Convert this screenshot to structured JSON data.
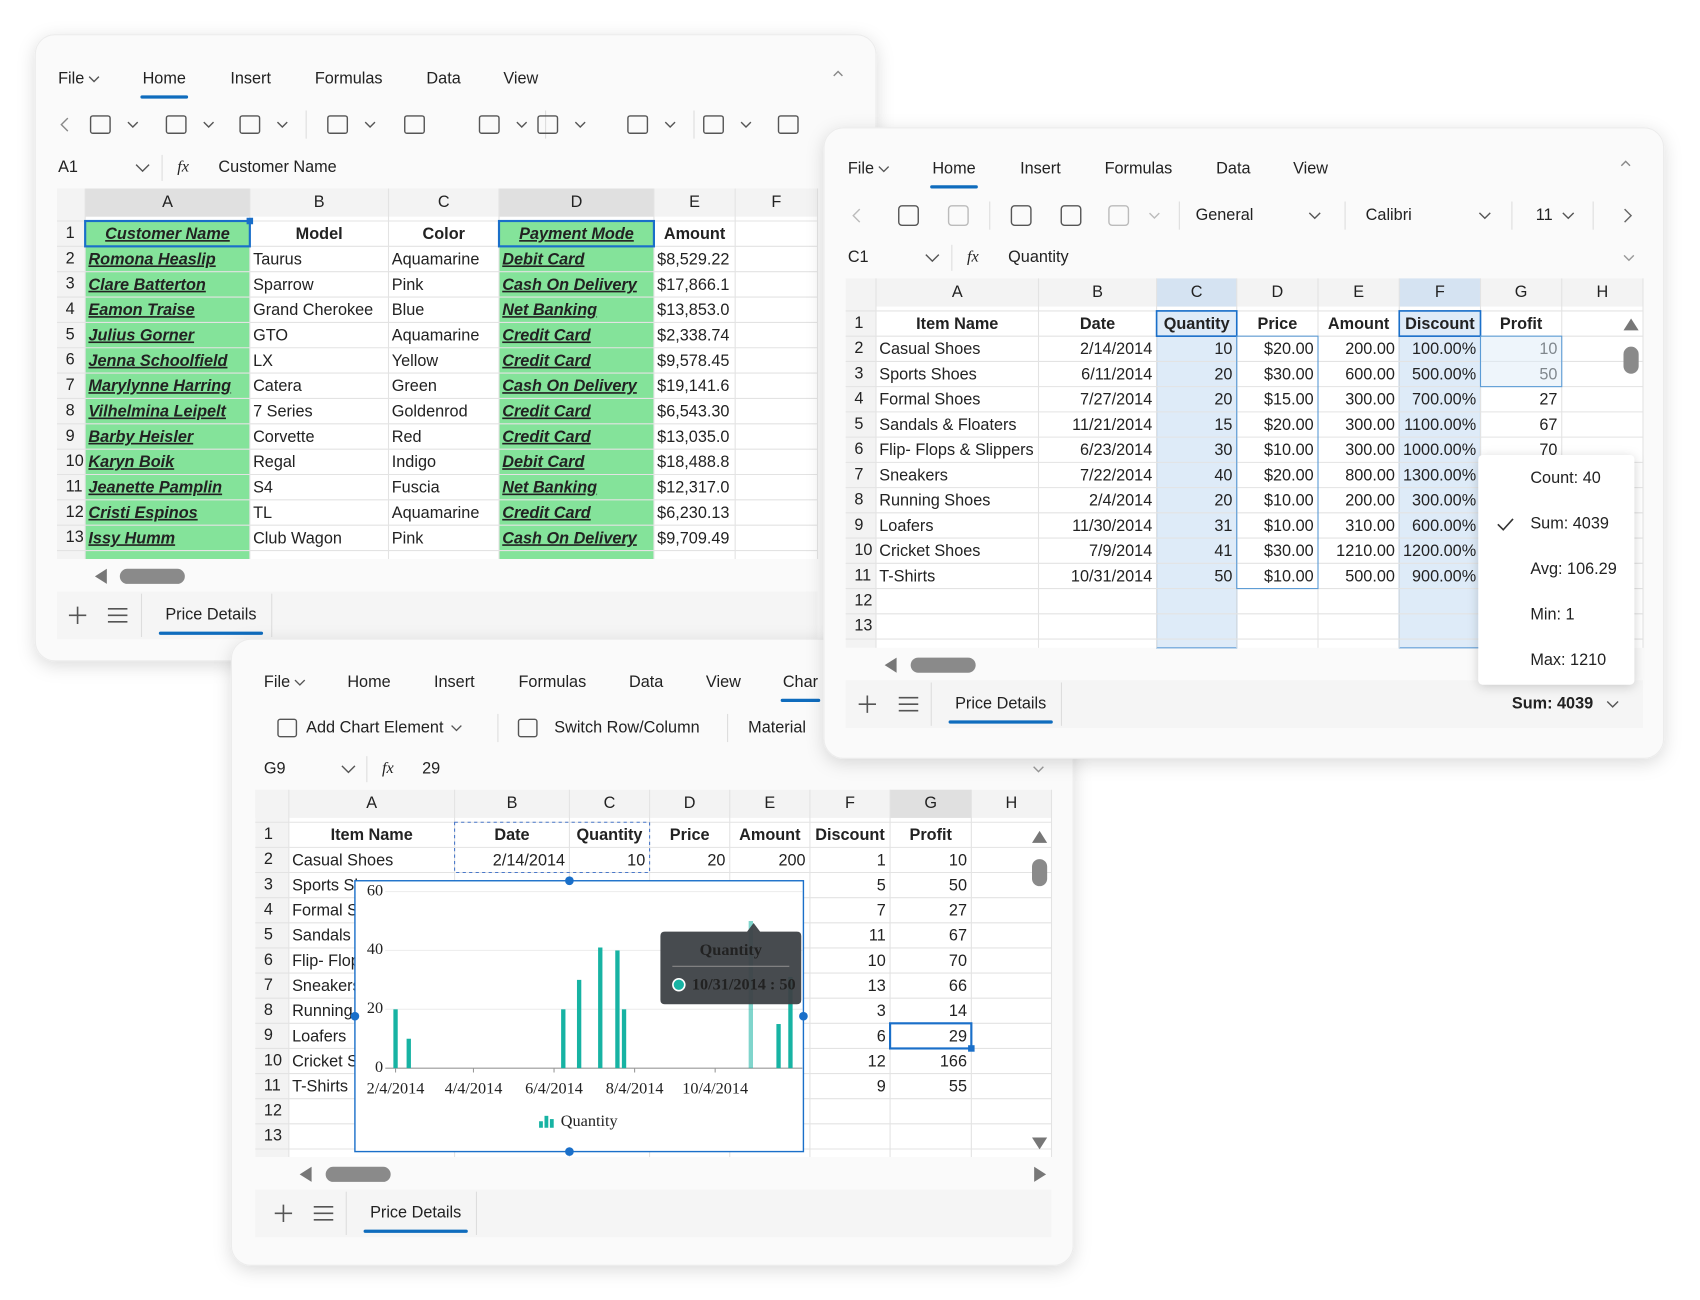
{
  "windows": [
    {
      "menu": [
        "File",
        "Home",
        "Insert",
        "Formulas",
        "Data",
        "View"
      ],
      "name_box": "A1",
      "fx": "fx",
      "formula": "Customer Name",
      "columns": [
        "A",
        "B",
        "C",
        "D",
        "E",
        "F"
      ],
      "row_numbers": [
        "1",
        "2",
        "3",
        "4",
        "5",
        "6",
        "7",
        "8",
        "9",
        "10",
        "11",
        "12",
        "13"
      ],
      "cells": [
        [
          "Customer Name",
          "Model",
          "Color",
          "Payment Mode",
          "Amount"
        ],
        [
          "Romona Heaslip",
          "Taurus",
          "Aquamarine",
          "Debit Card",
          "$8,529.22"
        ],
        [
          "Clare Batterton",
          "Sparrow",
          "Pink",
          "Cash On Delivery",
          "$17,866.1"
        ],
        [
          "Eamon Traise",
          "Grand Cherokee",
          "Blue",
          "Net Banking",
          "$13,853.0"
        ],
        [
          "Julius Gorner",
          "GTO",
          "Aquamarine",
          "Credit Card",
          "$2,338.74"
        ],
        [
          "Jenna Schoolfield",
          "LX",
          "Yellow",
          "Credit Card",
          "$9,578.45"
        ],
        [
          "Marylynne Harring",
          "Catera",
          "Green",
          "Cash On Delivery",
          "$19,141.6"
        ],
        [
          "Vilhelmina Leipelt",
          "7 Series",
          "Goldenrod",
          "Credit Card",
          "$6,543.30"
        ],
        [
          "Barby Heisler",
          "Corvette",
          "Red",
          "Credit Card",
          "$13,035.0"
        ],
        [
          "Karyn Boik",
          "Regal",
          "Indigo",
          "Debit Card",
          "$18,488.8"
        ],
        [
          "Jeanette Pamplin",
          "S4",
          "Fuscia",
          "Net Banking",
          "$12,317.0"
        ],
        [
          "Cristi Espinos",
          "TL",
          "Aquamarine",
          "Credit Card",
          "$6,230.13"
        ],
        [
          "Issy Humm",
          "Club Wagon",
          "Pink",
          "Cash On Delivery",
          "$9,709.49"
        ]
      ],
      "sheet_tab": "Price Details"
    },
    {
      "menu": [
        "File",
        "Home",
        "Insert",
        "Formulas",
        "Data",
        "View"
      ],
      "toolbar": [
        "General",
        "Calibri",
        "11"
      ],
      "name_box": "C1",
      "fx": "fx",
      "formula": "Quantity",
      "columns": [
        "A",
        "B",
        "C",
        "D",
        "E",
        "F",
        "G",
        "H"
      ],
      "row_numbers": [
        "1",
        "2",
        "3",
        "4",
        "5",
        "6",
        "7",
        "8",
        "9",
        "10",
        "11",
        "12",
        "13"
      ],
      "cells": [
        [
          "Item Name",
          "Date",
          "Quantity",
          "Price",
          "Amount",
          "Discount",
          "Profit"
        ],
        [
          "Casual Shoes",
          "2/14/2014",
          "10",
          "$20.00",
          "200.00",
          "100.00%",
          "10"
        ],
        [
          "Sports Shoes",
          "6/11/2014",
          "20",
          "$30.00",
          "600.00",
          "500.00%",
          "50"
        ],
        [
          "Formal Shoes",
          "7/27/2014",
          "20",
          "$15.00",
          "300.00",
          "700.00%",
          "27"
        ],
        [
          "Sandals & Floaters",
          "11/21/2014",
          "15",
          "$20.00",
          "300.00",
          "1100.00%",
          "67"
        ],
        [
          "Flip- Flops & Slippers",
          "6/23/2014",
          "30",
          "$10.00",
          "300.00",
          "1000.00%",
          "70"
        ],
        [
          "Sneakers",
          "7/22/2014",
          "40",
          "$20.00",
          "800.00",
          "1300.00%",
          null
        ],
        [
          "Running Shoes",
          "2/4/2014",
          "20",
          "$10.00",
          "200.00",
          "300.00%",
          null
        ],
        [
          "Loafers",
          "11/30/2014",
          "31",
          "$10.00",
          "310.00",
          "600.00%",
          null
        ],
        [
          "Cricket Shoes",
          "7/9/2014",
          "41",
          "$30.00",
          "1210.00",
          "1200.00%",
          null
        ],
        [
          "T-Shirts",
          "10/31/2014",
          "50",
          "$10.00",
          "500.00",
          "900.00%",
          null
        ]
      ],
      "status_popup": [
        "Count: 40",
        "Sum: 4039",
        "Avg: 106.29",
        "Min: 1",
        "Max: 1210"
      ],
      "status": "Sum: 4039",
      "sheet_tab": "Price Details"
    },
    {
      "menu": [
        "File",
        "Home",
        "Insert",
        "Formulas",
        "Data",
        "View",
        "Char"
      ],
      "toolbar": [
        "Add Chart Element",
        "Switch Row/Column",
        "Material"
      ],
      "name_box": "G9",
      "fx": "fx",
      "formula": "29",
      "columns": [
        "A",
        "B",
        "C",
        "D",
        "E",
        "F",
        "G",
        "H"
      ],
      "row_numbers": [
        "1",
        "2",
        "3",
        "4",
        "5",
        "6",
        "7",
        "8",
        "9",
        "10",
        "11",
        "12",
        "13"
      ],
      "cells": [
        [
          "Item Name",
          "Date",
          "Quantity",
          "Price",
          "Amount",
          "Discount",
          "Profit"
        ],
        [
          "Casual Shoes",
          "2/14/2014",
          "10",
          "20",
          "200",
          "1",
          "10"
        ],
        [
          "Sports Shoes",
          null,
          null,
          null,
          null,
          "5",
          "50"
        ],
        [
          "Formal Shoes",
          null,
          null,
          null,
          null,
          "7",
          "27"
        ],
        [
          "Sandals",
          null,
          null,
          null,
          null,
          "11",
          "67"
        ],
        [
          "Flip- Flops",
          null,
          null,
          null,
          null,
          "10",
          "70"
        ],
        [
          "Sneakers",
          null,
          null,
          null,
          null,
          "13",
          "66"
        ],
        [
          "Running",
          null,
          null,
          null,
          null,
          "3",
          "14"
        ],
        [
          "Loafers",
          null,
          null,
          null,
          null,
          "6",
          "29"
        ],
        [
          "Cricket Shoes",
          null,
          null,
          null,
          null,
          "12",
          "166"
        ],
        [
          "T-Shirts",
          null,
          null,
          null,
          null,
          "9",
          "55"
        ]
      ],
      "sheet_tab": "Price Details"
    }
  ],
  "chart_data": {
    "type": "bar",
    "x": [
      "2/14/2014",
      "6/11/2014",
      "7/27/2014",
      "11/21/2014",
      "6/23/2014",
      "7/22/2014",
      "2/4/2014",
      "11/30/2014",
      "7/9/2014",
      "10/31/2014"
    ],
    "series": [
      {
        "name": "Quantity",
        "color": "#17b3a3",
        "values": [
          10,
          20,
          20,
          15,
          30,
          40,
          20,
          31,
          41,
          50
        ]
      }
    ],
    "xlim": [
      "1/19/2014",
      "12/9/2014"
    ],
    "xticks": [
      "2/4/2014",
      "4/4/2014",
      "6/4/2014",
      "8/4/2014",
      "10/4/2014"
    ],
    "ylim": [
      0,
      60
    ],
    "yticks": [
      0,
      20,
      40,
      60
    ],
    "grid": true,
    "tooltip": {
      "title": "Quantity",
      "text": "10/31/2014 : 50"
    }
  }
}
